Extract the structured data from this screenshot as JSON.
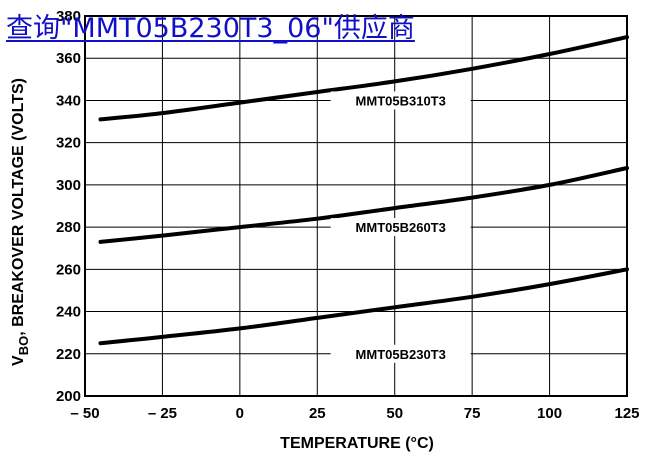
{
  "link": {
    "text": "查询\"MMT05B230T3_06\"供应商"
  },
  "chart_data": {
    "type": "line",
    "xlabel": "TEMPERATURE (°C)",
    "ylabel_main": "V",
    "ylabel_sub": "BO",
    "ylabel_rest": ", BREAKOVER VOLTAGE (VOLTS)",
    "xlim": [
      -50,
      125
    ],
    "ylim": [
      200,
      380
    ],
    "x_ticks": [
      -50,
      -25,
      0,
      25,
      50,
      75,
      100,
      125
    ],
    "x_tick_labels": [
      "– 50",
      "– 25",
      "0",
      "25",
      "50",
      "75",
      "100",
      "125"
    ],
    "y_ticks": [
      200,
      220,
      240,
      260,
      280,
      300,
      320,
      340,
      360,
      380
    ],
    "y_tick_labels": [
      "200",
      "220",
      "240",
      "260",
      "280",
      "300",
      "320",
      "340",
      "360",
      "380"
    ],
    "grid": true,
    "series": [
      {
        "name": "MMT05B310T3",
        "x": [
          -45,
          -25,
          0,
          25,
          50,
          75,
          100,
          125
        ],
        "y": [
          331,
          334,
          339,
          344,
          349,
          355,
          362,
          370
        ]
      },
      {
        "name": "MMT05B260T3",
        "x": [
          -45,
          -25,
          0,
          25,
          50,
          75,
          100,
          125
        ],
        "y": [
          273,
          276,
          280,
          284,
          289,
          294,
          300,
          308
        ]
      },
      {
        "name": "MMT05B230T3",
        "x": [
          -45,
          -25,
          0,
          25,
          50,
          75,
          100,
          125
        ],
        "y": [
          225,
          228,
          232,
          237,
          242,
          247,
          253,
          260
        ]
      }
    ]
  }
}
